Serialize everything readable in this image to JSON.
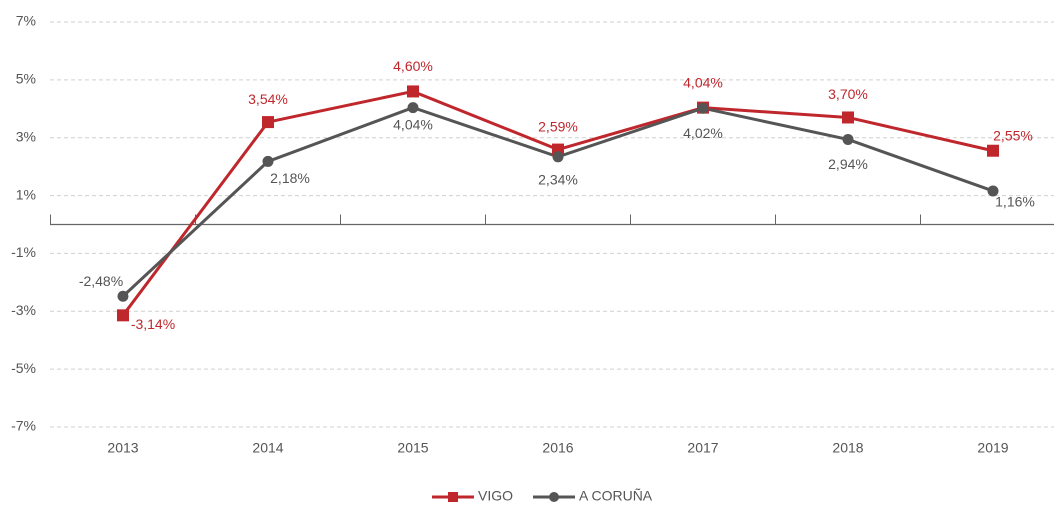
{
  "chart_data": {
    "type": "line",
    "categories": [
      "2013",
      "2014",
      "2015",
      "2016",
      "2017",
      "2018",
      "2019"
    ],
    "series": [
      {
        "name": "VIGO",
        "color": "#c0272d",
        "marker": "square",
        "values": [
          -3.14,
          3.54,
          4.6,
          2.59,
          4.04,
          3.7,
          2.55
        ],
        "value_labels": [
          "-3,14%",
          "3,54%",
          "4,60%",
          "2,59%",
          "4,04%",
          "3,70%",
          "2,55%"
        ]
      },
      {
        "name": "A CORUÑA",
        "color": "#555555",
        "marker": "circle",
        "values": [
          -2.48,
          2.18,
          4.04,
          2.34,
          4.02,
          2.94,
          1.16
        ],
        "value_labels": [
          "-2,48%",
          "2,18%",
          "4,04%",
          "2,34%",
          "4,02%",
          "2,94%",
          "1,16%"
        ]
      }
    ],
    "ylim": [
      -7,
      7
    ],
    "yticks": [
      {
        "value": 7,
        "label": "7%"
      },
      {
        "value": 5,
        "label": "5%"
      },
      {
        "value": 3,
        "label": "3%"
      },
      {
        "value": 1,
        "label": "1%"
      },
      {
        "value": -1,
        "label": "-1%"
      },
      {
        "value": -3,
        "label": "-3%"
      },
      {
        "value": -5,
        "label": "-5%"
      },
      {
        "value": -7,
        "label": "-7%"
      }
    ],
    "grid": true,
    "legend": "bottom"
  }
}
